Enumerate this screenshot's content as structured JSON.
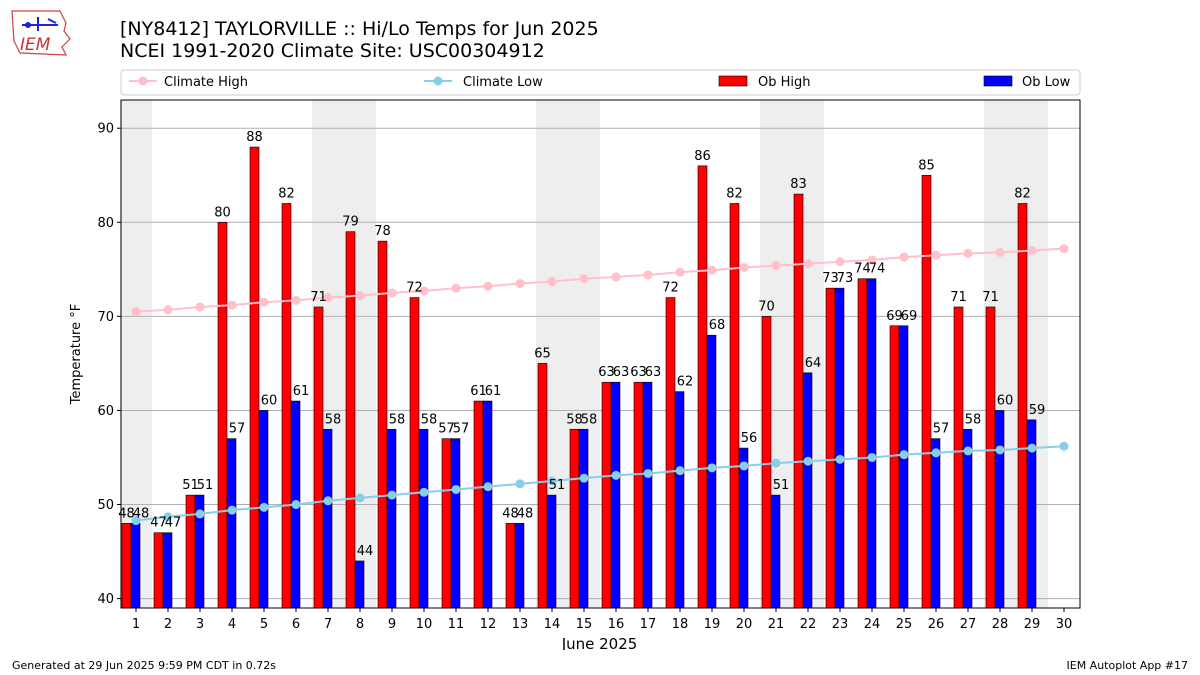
{
  "title_line1": "[NY8412] TAYLORVILLE :: Hi/Lo Temps for Jun 2025",
  "title_line2": "NCEI 1991-2020 Climate Site: USC00304912",
  "logo_text": "IEM",
  "footer_left": "Generated at 29 Jun 2025 9:59 PM CDT in 0.72s",
  "footer_right": "IEM Autoplot App #17",
  "colors": {
    "ob_high": "#ff0000",
    "ob_low": "#0000ff",
    "climate_high": "#ffc0cb",
    "climate_low": "#87ceeb",
    "weekend_shade": "#eeeeee"
  },
  "chart_data": {
    "type": "bar",
    "xlabel": "June 2025",
    "ylabel": "Temperature °F",
    "ylim": [
      39,
      93
    ],
    "yticks": [
      40,
      50,
      60,
      70,
      80,
      90
    ],
    "grid": "horizontal",
    "legend_position": "top",
    "legend": [
      "Climate High",
      "Climate Low",
      "Ob High",
      "Ob Low"
    ],
    "days": [
      1,
      2,
      3,
      4,
      5,
      6,
      7,
      8,
      9,
      10,
      11,
      12,
      13,
      14,
      15,
      16,
      17,
      18,
      19,
      20,
      21,
      22,
      23,
      24,
      25,
      26,
      27,
      28,
      29,
      30
    ],
    "weekend_days": [
      1,
      7,
      8,
      14,
      15,
      21,
      22,
      28,
      29
    ],
    "series": [
      {
        "name": "Ob High",
        "kind": "bar",
        "values": [
          48,
          47,
          51,
          80,
          88,
          82,
          71,
          79,
          78,
          72,
          57,
          61,
          48,
          65,
          58,
          63,
          63,
          72,
          86,
          82,
          70,
          83,
          73,
          74,
          69,
          85,
          71,
          71,
          82,
          null
        ]
      },
      {
        "name": "Ob Low",
        "kind": "bar",
        "values": [
          48,
          47,
          51,
          57,
          60,
          61,
          58,
          44,
          58,
          58,
          57,
          61,
          48,
          51,
          58,
          63,
          63,
          62,
          68,
          56,
          51,
          64,
          73,
          74,
          69,
          57,
          58,
          60,
          59,
          null
        ]
      },
      {
        "name": "Climate High",
        "kind": "line",
        "values": [
          70.5,
          70.7,
          71.0,
          71.2,
          71.5,
          71.7,
          72.0,
          72.2,
          72.5,
          72.7,
          73.0,
          73.2,
          73.5,
          73.7,
          74.0,
          74.2,
          74.4,
          74.7,
          74.9,
          75.2,
          75.4,
          75.6,
          75.8,
          76.0,
          76.3,
          76.5,
          76.7,
          76.8,
          77.0,
          77.2
        ]
      },
      {
        "name": "Climate Low",
        "kind": "line",
        "values": [
          48.3,
          48.7,
          49.0,
          49.4,
          49.7,
          50.0,
          50.4,
          50.7,
          51.0,
          51.3,
          51.6,
          51.9,
          52.2,
          52.5,
          52.8,
          53.1,
          53.3,
          53.6,
          53.9,
          54.1,
          54.4,
          54.6,
          54.8,
          55.0,
          55.3,
          55.5,
          55.7,
          55.8,
          56.0,
          56.2
        ]
      }
    ]
  }
}
